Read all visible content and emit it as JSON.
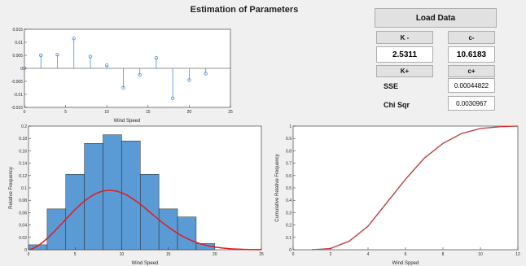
{
  "header": {
    "title": "Estimation of Parameters"
  },
  "controls": {
    "load_data": "Load Data",
    "k_minus_label": "K -",
    "c_minus_label": "c-",
    "k_value": "2.5311",
    "c_value": "10.6183",
    "k_plus_label": "K+",
    "c_plus_label": "c+",
    "sse_label": "SSE",
    "sse_value": "0.00044822",
    "chi_label": "Chi Sqr",
    "chi_value": "0.0030967"
  },
  "chart_data": [
    {
      "type": "stem",
      "xlabel": "Wind Speed",
      "xlim": [
        0,
        25
      ],
      "ylim": [
        -0.015,
        0.015
      ],
      "xticks": [
        "0",
        "5",
        "10",
        "15",
        "20",
        "25"
      ],
      "yticks": [
        "-0.015",
        "-0.01",
        "-0.005",
        "0",
        "0.005",
        "0.01",
        "0.015"
      ],
      "x": [
        0,
        2,
        4,
        6,
        8,
        10,
        12,
        14,
        16,
        18,
        20,
        22
      ],
      "y": [
        0.0,
        0.005,
        0.0053,
        0.0115,
        0.0045,
        0.0012,
        -0.0075,
        -0.0025,
        0.004,
        -0.0115,
        -0.0045,
        -0.002
      ],
      "color": "#4a90d9"
    },
    {
      "type": "bar",
      "xlabel": "Wind Speed",
      "ylabel": "Relative Frequency",
      "xlim": [
        0,
        25
      ],
      "ylim": [
        0,
        0.2
      ],
      "xticks": [
        "0",
        "5",
        "10",
        "15",
        "20",
        "25"
      ],
      "yticks": [
        "0",
        "0.02",
        "0.04",
        "0.06",
        "0.08",
        "0.1",
        "0.12",
        "0.14",
        "0.16",
        "0.18",
        "0.2"
      ],
      "bin_edges": [
        0,
        2,
        4,
        6,
        8,
        10,
        12,
        14,
        16,
        18,
        20
      ],
      "values": [
        0.008,
        0.066,
        0.122,
        0.172,
        0.186,
        0.176,
        0.122,
        0.066,
        0.053,
        0.01
      ],
      "bar_color": "#5b9bd5",
      "fit_color": "#e31a1c",
      "fit": {
        "distribution": "weibull",
        "k": 2.5311,
        "c": 10.6183
      }
    },
    {
      "type": "line",
      "xlabel": "Wind Spped",
      "ylabel": "Cumulative Relative Frequency",
      "xlim": [
        0,
        12
      ],
      "ylim": [
        0,
        1
      ],
      "xticks": [
        "0",
        "2",
        "4",
        "6",
        "8",
        "10",
        "12"
      ],
      "yticks": [
        "0",
        "0.1",
        "0.2",
        "0.3",
        "0.4",
        "0.5",
        "0.6",
        "0.7",
        "0.8",
        "0.9",
        "1"
      ],
      "x": [
        1,
        2,
        3,
        4,
        5,
        6,
        7,
        8,
        9,
        10,
        11,
        12
      ],
      "y": [
        0.0,
        0.01,
        0.07,
        0.19,
        0.38,
        0.57,
        0.74,
        0.86,
        0.94,
        0.98,
        0.995,
        1.0
      ],
      "line_color": "#e31a1c",
      "overlay_color": "#9a9a9a"
    }
  ]
}
